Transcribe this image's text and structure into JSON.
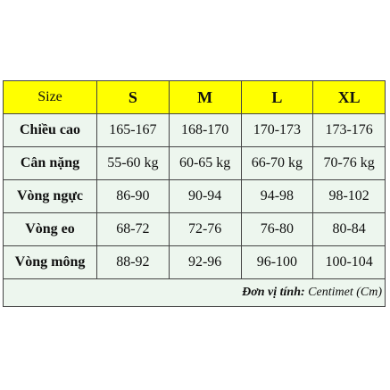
{
  "table": {
    "header": [
      "Size",
      "S",
      "M",
      "L",
      "XL"
    ],
    "rows": [
      [
        "Chiều cao",
        "165-167",
        "168-170",
        "170-173",
        "173-176"
      ],
      [
        "Cân nặng",
        "55-60 kg",
        "60-65 kg",
        "66-70 kg",
        "70-76 kg"
      ],
      [
        "Vòng ngực",
        "86-90",
        "90-94",
        "94-98",
        "98-102"
      ],
      [
        "Vòng eo",
        "68-72",
        "72-76",
        "76-80",
        "80-84"
      ],
      [
        "Vòng mông",
        "88-92",
        "92-96",
        "96-100",
        "100-104"
      ]
    ]
  },
  "footer": {
    "label": "Đơn vị tính:",
    "unit": "Centimet (Cm)"
  }
}
